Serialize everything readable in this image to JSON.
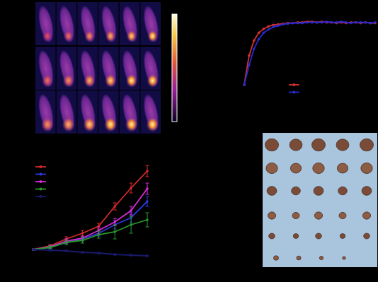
{
  "chart_data": [
    {
      "type": "line",
      "tick_labels": false,
      "legend": "bottom",
      "marker": "circle",
      "x": [
        0,
        1,
        2,
        3,
        4,
        5,
        6,
        7,
        8,
        9,
        10,
        11,
        12,
        13,
        14,
        15,
        16,
        17,
        18,
        19,
        20,
        21,
        22,
        23,
        24,
        25,
        26,
        27
      ],
      "xlim": [
        0,
        27
      ],
      "ylim": [
        0,
        100
      ],
      "series": [
        {
          "color": "#d43030",
          "values": [
            0,
            45,
            68,
            80,
            86,
            90,
            92,
            93,
            94,
            95,
            95,
            96,
            96,
            97,
            97,
            96,
            97,
            96,
            96,
            95,
            96,
            95,
            96,
            96,
            95,
            96,
            95,
            95
          ]
        },
        {
          "color": "#2a2ad0",
          "values": [
            0,
            30,
            55,
            70,
            80,
            85,
            89,
            91,
            93,
            94,
            95,
            95,
            95,
            96,
            96,
            96,
            96,
            97,
            96,
            96,
            97,
            96,
            95,
            96,
            96,
            96,
            95,
            96
          ]
        }
      ]
    },
    {
      "type": "line",
      "tick_labels": false,
      "legend": "top-left",
      "marker": "circle",
      "x": [
        0,
        1,
        2,
        3,
        4,
        5,
        6,
        7
      ],
      "xlim": [
        0,
        7
      ],
      "ylim": [
        -20,
        120
      ],
      "series": [
        {
          "color": "#d42a2a",
          "values": [
            0,
            5,
            15,
            23,
            33,
            61,
            87,
            111
          ],
          "errors": [
            1,
            2,
            3,
            4,
            4,
            5,
            7,
            8
          ]
        },
        {
          "color": "#2a3adb",
          "values": [
            0,
            3,
            10,
            15,
            23,
            35,
            45,
            68
          ],
          "errors": [
            1,
            2,
            2,
            3,
            4,
            6,
            7,
            7
          ]
        },
        {
          "color": "#d62ad6",
          "values": [
            0,
            4,
            12,
            16,
            27,
            39,
            55,
            86
          ],
          "errors": [
            1,
            2,
            3,
            3,
            5,
            5,
            6,
            8
          ]
        },
        {
          "color": "#2a9a2a",
          "values": [
            0,
            3,
            10,
            13,
            21,
            25,
            35,
            42
          ],
          "errors": [
            1,
            2,
            3,
            4,
            5,
            10,
            12,
            10
          ]
        },
        {
          "color": "#1a1a6a",
          "values": [
            0,
            -1,
            -2,
            -4,
            -5,
            -7,
            -8,
            -9
          ],
          "errors": [
            1,
            1,
            1,
            1,
            1,
            1,
            1,
            1
          ]
        }
      ]
    }
  ]
}
